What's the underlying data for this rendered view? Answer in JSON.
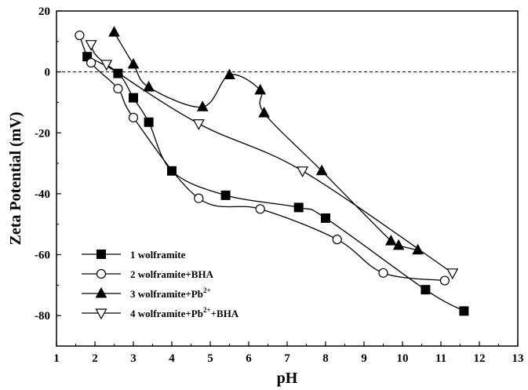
{
  "chart_data": {
    "type": "line",
    "title": "",
    "xlabel": "pH",
    "ylabel": "Zeta Potential (mV)",
    "xlim": [
      1,
      13
    ],
    "ylim": [
      -90,
      20
    ],
    "xticks": [
      "1",
      "2",
      "3",
      "4",
      "5",
      "6",
      "7",
      "8",
      "9",
      "10",
      "11",
      "12",
      "13"
    ],
    "yticks": [
      "20",
      "0",
      "-20",
      "-40",
      "-60",
      "-80"
    ],
    "reference_line": {
      "y": 0,
      "style": "dashed"
    },
    "grid": false,
    "legend_position": "bottom-left",
    "series": [
      {
        "name": "1 wolframite",
        "marker": "filled-square",
        "points": [
          [
            1.8,
            5
          ],
          [
            2.6,
            -0.5
          ],
          [
            3.0,
            -8.5
          ],
          [
            3.4,
            -16.5
          ],
          [
            4.0,
            -32.5
          ],
          [
            5.4,
            -40.5
          ],
          [
            7.3,
            -44.5
          ],
          [
            8.0,
            -48
          ],
          [
            10.6,
            -71.5
          ],
          [
            11.6,
            -78.5
          ]
        ]
      },
      {
        "name": "2 wolframite+BHA",
        "marker": "open-circle",
        "points": [
          [
            1.6,
            12
          ],
          [
            1.9,
            3
          ],
          [
            2.6,
            -5.5
          ],
          [
            3.0,
            -15
          ],
          [
            4.7,
            -41.5
          ],
          [
            6.3,
            -45
          ],
          [
            8.3,
            -55
          ],
          [
            9.5,
            -66
          ],
          [
            11.1,
            -68.5
          ]
        ]
      },
      {
        "name": "3 wolframite+Pb",
        "name_superscript": "2+",
        "marker": "filled-triangle",
        "points": [
          [
            2.5,
            13
          ],
          [
            3.0,
            2.5
          ],
          [
            3.4,
            -5
          ],
          [
            4.8,
            -11.5
          ],
          [
            5.5,
            -1
          ],
          [
            6.3,
            -6
          ],
          [
            6.4,
            -13.5
          ],
          [
            7.9,
            -32.5
          ],
          [
            9.7,
            -55.5
          ],
          [
            9.9,
            -57
          ],
          [
            10.4,
            -58.5
          ]
        ]
      },
      {
        "name": "4 wolframite+Pb",
        "name_superscript": "2+",
        "name_suffix": "+BHA",
        "marker": "open-triangle-down",
        "points": [
          [
            1.9,
            9
          ],
          [
            2.3,
            2.5
          ],
          [
            4.7,
            -17
          ],
          [
            7.4,
            -32.5
          ],
          [
            11.3,
            -66
          ]
        ]
      }
    ]
  }
}
